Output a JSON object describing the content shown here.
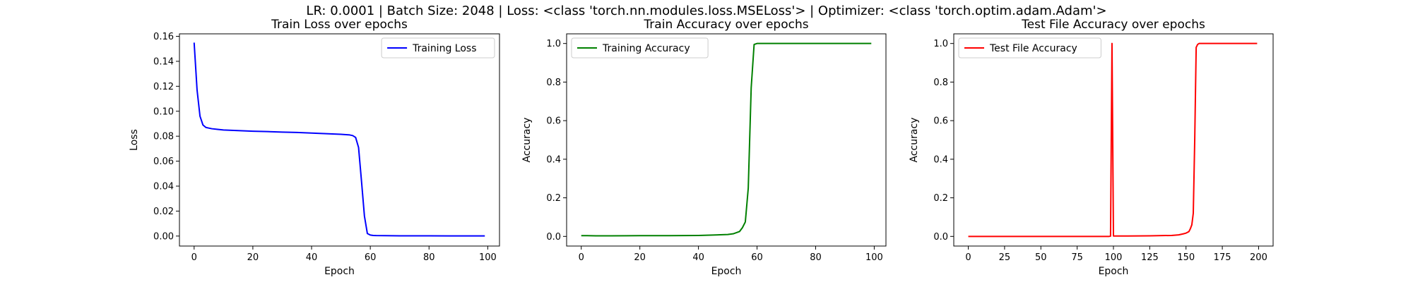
{
  "figure": {
    "suptitle": "LR: 0.0001 | Batch Size: 2048 | Loss: <class 'torch.nn.modules.loss.MSELoss'> | Optimizer: <class 'torch.optim.adam.Adam'>"
  },
  "chart_data": [
    {
      "type": "line",
      "title": "Train Loss over epochs",
      "xlabel": "Epoch",
      "ylabel": "Loss",
      "xlim": [
        -5,
        104
      ],
      "ylim": [
        -0.008,
        0.162
      ],
      "xticks": [
        0,
        20,
        40,
        60,
        80,
        100
      ],
      "xtick_labels": [
        "0",
        "20",
        "40",
        "60",
        "80",
        "100"
      ],
      "yticks": [
        0.0,
        0.02,
        0.04,
        0.06,
        0.08,
        0.1,
        0.12,
        0.14,
        0.16
      ],
      "ytick_labels": [
        "0.00",
        "0.02",
        "0.04",
        "0.06",
        "0.08",
        "0.10",
        "0.12",
        "0.14",
        "0.16"
      ],
      "grid": false,
      "legend_position": "upper right",
      "series": [
        {
          "name": "Training Loss",
          "color": "#0000ff",
          "x": [
            0,
            1,
            2,
            3,
            4,
            5,
            6,
            8,
            10,
            15,
            20,
            25,
            30,
            35,
            40,
            45,
            50,
            53,
            54,
            55,
            56,
            57,
            58,
            59,
            60,
            61,
            62,
            65,
            70,
            80,
            90,
            99
          ],
          "y": [
            0.155,
            0.117,
            0.096,
            0.089,
            0.087,
            0.0865,
            0.086,
            0.0855,
            0.085,
            0.0845,
            0.084,
            0.0837,
            0.0833,
            0.083,
            0.0825,
            0.082,
            0.0815,
            0.081,
            0.0805,
            0.079,
            0.071,
            0.044,
            0.016,
            0.002,
            0.0008,
            0.0005,
            0.0004,
            0.0003,
            0.0002,
            0.0002,
            0.0001,
            0.0001
          ]
        }
      ]
    },
    {
      "type": "line",
      "title": "Train Accuracy over epochs",
      "xlabel": "Epoch",
      "ylabel": "Accuracy",
      "xlim": [
        -5,
        104
      ],
      "ylim": [
        -0.05,
        1.05
      ],
      "xticks": [
        0,
        20,
        40,
        60,
        80,
        100
      ],
      "xtick_labels": [
        "0",
        "20",
        "40",
        "60",
        "80",
        "100"
      ],
      "yticks": [
        0.0,
        0.2,
        0.4,
        0.6,
        0.8,
        1.0
      ],
      "ytick_labels": [
        "0.0",
        "0.2",
        "0.4",
        "0.6",
        "0.8",
        "1.0"
      ],
      "grid": false,
      "legend_position": "upper left",
      "series": [
        {
          "name": "Training Accuracy",
          "color": "#008000",
          "x": [
            0,
            2,
            5,
            10,
            20,
            30,
            40,
            45,
            50,
            52,
            54,
            55,
            56,
            57,
            58,
            59,
            60,
            62,
            70,
            80,
            90,
            99
          ],
          "y": [
            0.004,
            0.004,
            0.003,
            0.003,
            0.004,
            0.004,
            0.005,
            0.007,
            0.01,
            0.014,
            0.025,
            0.045,
            0.075,
            0.25,
            0.77,
            0.995,
            1.0,
            1.0,
            1.0,
            1.0,
            1.0,
            1.0
          ]
        }
      ]
    },
    {
      "type": "line",
      "title": "Test File Accuracy over epochs",
      "xlabel": "Epoch",
      "ylabel": "Accuracy",
      "xlim": [
        -10,
        210
      ],
      "ylim": [
        -0.05,
        1.05
      ],
      "xticks": [
        0,
        25,
        50,
        75,
        100,
        125,
        150,
        175,
        200
      ],
      "xtick_labels": [
        "0",
        "25",
        "50",
        "75",
        "100",
        "125",
        "150",
        "175",
        "200"
      ],
      "yticks": [
        0.0,
        0.2,
        0.4,
        0.6,
        0.8,
        1.0
      ],
      "ytick_labels": [
        "0.0",
        "0.2",
        "0.4",
        "0.6",
        "0.8",
        "1.0"
      ],
      "grid": false,
      "legend_position": "upper left",
      "series": [
        {
          "name": "Test File Accuracy",
          "color": "#ff0000",
          "x": [
            0,
            25,
            50,
            75,
            97,
            98,
            99,
            100,
            101,
            110,
            125,
            140,
            145,
            148,
            150,
            152,
            153,
            154,
            155,
            156,
            157,
            158,
            159,
            160,
            170,
            180,
            190,
            199
          ],
          "y": [
            0.0,
            0.0,
            0.0,
            0.0,
            0.0,
            0.001,
            1.0,
            0.002,
            0.002,
            0.002,
            0.003,
            0.005,
            0.008,
            0.013,
            0.017,
            0.025,
            0.04,
            0.06,
            0.12,
            0.5,
            0.98,
            0.995,
            1.0,
            1.0,
            1.0,
            1.0,
            1.0,
            1.0
          ]
        }
      ]
    }
  ]
}
